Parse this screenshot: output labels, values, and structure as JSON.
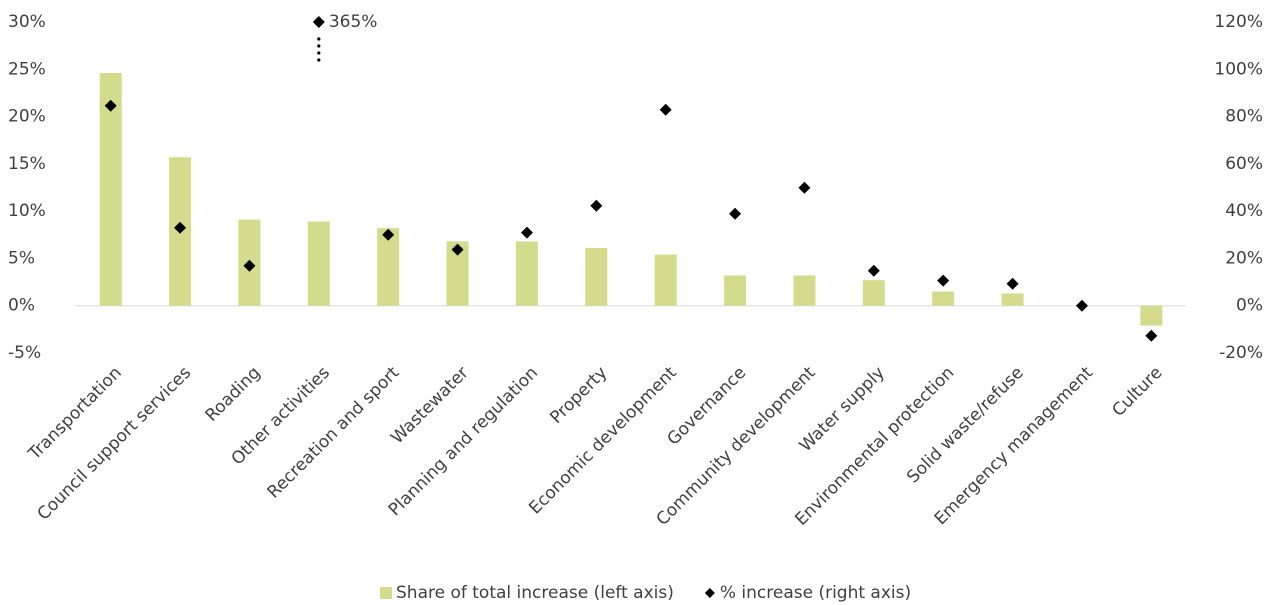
{
  "chart_data": {
    "type": "bar-scatter",
    "categories": [
      "Transportation",
      "Council support services",
      "Roading",
      "Other activities",
      "Recreation and sport",
      "Wastewater",
      "Planning and regulation",
      "Property",
      "Economic development",
      "Governance",
      "Community development",
      "Water supply",
      "Environmental protection",
      "Solid waste/refuse",
      "Emergency management",
      "Culture"
    ],
    "series": [
      {
        "name": "Share of total increase (left axis)",
        "type": "bar",
        "color": "#d5db8c",
        "axis": "y",
        "values": [
          24.6,
          15.7,
          9.1,
          8.9,
          8.2,
          6.8,
          6.8,
          6.1,
          5.4,
          3.2,
          3.2,
          2.7,
          1.5,
          1.3,
          0,
          -2.1
        ]
      },
      {
        "name": "% increase (right axis)",
        "type": "scatter",
        "color": "#000000",
        "axis": "y2",
        "values": [
          84.6,
          33,
          16.9,
          365,
          30,
          23.7,
          30.9,
          42.3,
          82.9,
          38.9,
          49.9,
          14.8,
          10.6,
          9.3,
          0,
          -12.7
        ],
        "value_labels": [
          null,
          null,
          null,
          "365%",
          null,
          null,
          null,
          null,
          null,
          null,
          null,
          null,
          null,
          null,
          null,
          null
        ]
      }
    ],
    "ylim": [
      -5,
      30
    ],
    "yticks": [
      {
        "value": -5,
        "label": "-5%"
      },
      {
        "value": 0,
        "label": "0%"
      },
      {
        "value": 5,
        "label": "5%"
      },
      {
        "value": 10,
        "label": "10%"
      },
      {
        "value": 15,
        "label": "15%"
      },
      {
        "value": 20,
        "label": "20%"
      },
      {
        "value": 25,
        "label": "25%"
      },
      {
        "value": 30,
        "label": "30%"
      }
    ],
    "y2lim": [
      -20,
      120
    ],
    "y2ticks": [
      {
        "value": -20,
        "label": "-20%"
      },
      {
        "value": 0,
        "label": "0%"
      },
      {
        "value": 20,
        "label": "20%"
      },
      {
        "value": 40,
        "label": "40%"
      },
      {
        "value": 60,
        "label": "60%"
      },
      {
        "value": 80,
        "label": "80%"
      },
      {
        "value": 100,
        "label": "100%"
      },
      {
        "value": 120,
        "label": "120%"
      }
    ],
    "legend": "bottom"
  }
}
